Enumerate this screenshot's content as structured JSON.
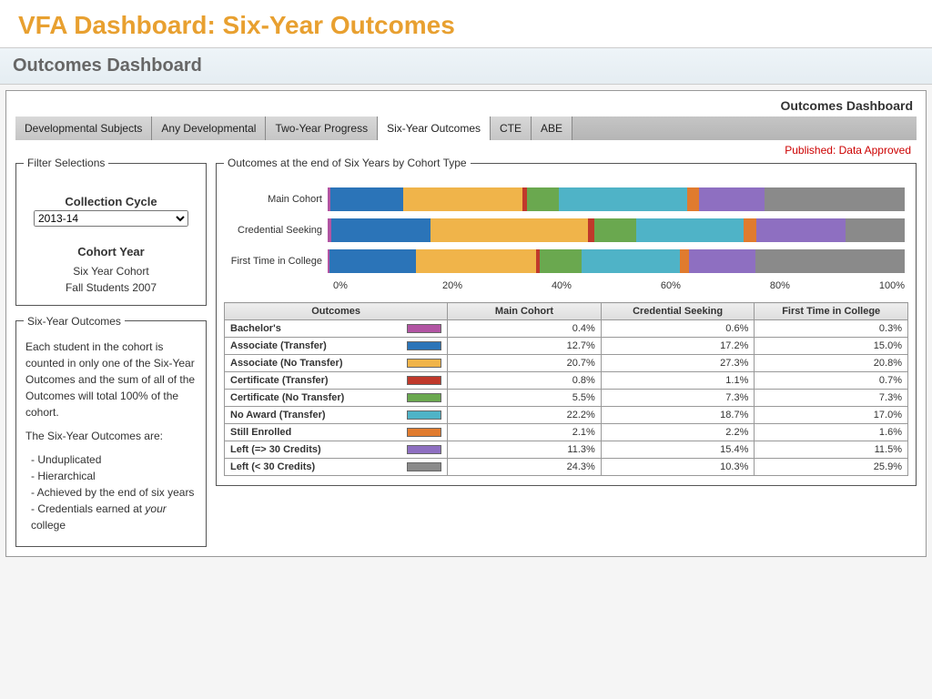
{
  "page_title": "VFA Dashboard: Six-Year Outcomes",
  "header": "Outcomes Dashboard",
  "sub_header": "Outcomes Dashboard",
  "status": "Published: Data Approved",
  "tabs": {
    "items": [
      "Developmental Subjects",
      "Any Developmental",
      "Two-Year Progress",
      "Six-Year Outcomes",
      "CTE",
      "ABE"
    ],
    "active_index": 3
  },
  "filter": {
    "legend": "Filter Selections",
    "cycle_label": "Collection Cycle",
    "cycle_value": "2013-14",
    "cohort_label": "Cohort Year",
    "cohort_line1": "Six Year Cohort",
    "cohort_line2": "Fall Students 2007"
  },
  "info": {
    "legend": "Six-Year Outcomes",
    "para1": "Each student in the cohort is counted in only one of the Six-Year Outcomes and the sum of all of the Outcomes will total 100% of the cohort.",
    "para2": "The Six-Year Outcomes are:",
    "bullets": [
      "Unduplicated",
      "Hierarchical",
      "Achieved by the end of six years",
      "Credentials earned at your college"
    ],
    "italic_word": "your"
  },
  "chart": {
    "legend": "Outcomes at the end of Six Years by Cohort Type",
    "axis_labels": [
      "0%",
      "20%",
      "40%",
      "60%",
      "80%",
      "100%"
    ],
    "series_colors": {
      "Bachelor's": "#b255a3",
      "Associate (Transfer)": "#2b74b8",
      "Associate (No Transfer)": "#f0b44a",
      "Certificate (Transfer)": "#c0392b",
      "Certificate (No Transfer)": "#6aa84f",
      "No Award (Transfer)": "#4fb3c7",
      "Still Enrolled": "#e07b2e",
      "Left (=> 30 Credits)": "#8e6fc1",
      "Left (< 30 Credits)": "#8a8a8a"
    },
    "rows": [
      {
        "label": "Main Cohort",
        "values": [
          0.4,
          12.7,
          20.7,
          0.8,
          5.5,
          22.2,
          2.1,
          11.3,
          24.3
        ]
      },
      {
        "label": "Credential Seeking",
        "values": [
          0.6,
          17.2,
          27.3,
          1.1,
          7.3,
          18.7,
          2.2,
          15.4,
          10.3
        ]
      },
      {
        "label": "First Time in College",
        "values": [
          0.3,
          15.0,
          20.8,
          0.7,
          7.3,
          17.0,
          1.6,
          11.5,
          25.9
        ]
      }
    ]
  },
  "table": {
    "headers": [
      "Outcomes",
      "Main Cohort",
      "Credential Seeking",
      "First Time in College"
    ],
    "rows": [
      {
        "name": "Bachelor's",
        "main": "0.4%",
        "cred": "0.6%",
        "first": "0.3%"
      },
      {
        "name": "Associate (Transfer)",
        "main": "12.7%",
        "cred": "17.2%",
        "first": "15.0%"
      },
      {
        "name": "Associate (No Transfer)",
        "main": "20.7%",
        "cred": "27.3%",
        "first": "20.8%"
      },
      {
        "name": "Certificate (Transfer)",
        "main": "0.8%",
        "cred": "1.1%",
        "first": "0.7%"
      },
      {
        "name": "Certificate (No Transfer)",
        "main": "5.5%",
        "cred": "7.3%",
        "first": "7.3%"
      },
      {
        "name": "No Award (Transfer)",
        "main": "22.2%",
        "cred": "18.7%",
        "first": "17.0%"
      },
      {
        "name": "Still Enrolled",
        "main": "2.1%",
        "cred": "2.2%",
        "first": "1.6%"
      },
      {
        "name": "Left (=> 30 Credits)",
        "main": "11.3%",
        "cred": "15.4%",
        "first": "11.5%"
      },
      {
        "name": "Left (< 30 Credits)",
        "main": "24.3%",
        "cred": "10.3%",
        "first": "25.9%"
      }
    ]
  }
}
